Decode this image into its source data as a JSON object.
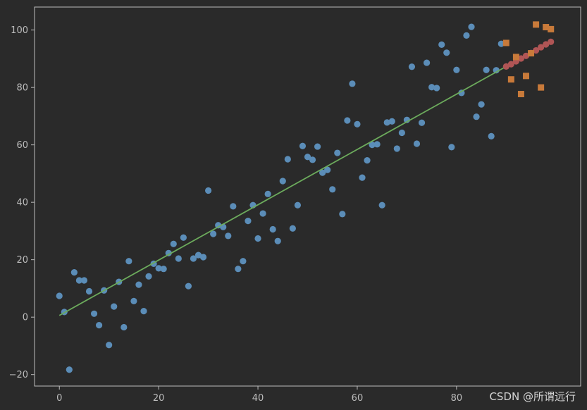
{
  "watermark": "CSDN @所谓远行",
  "chart_data": {
    "type": "scatter",
    "xlim": [
      -5,
      105
    ],
    "ylim": [
      -24,
      108
    ],
    "x_ticks": [
      0,
      20,
      40,
      60,
      80
    ],
    "y_ticks": [
      -20,
      0,
      20,
      40,
      60,
      80,
      100
    ],
    "grid": false,
    "legend": "none",
    "colors": {
      "background": "#2a2a2a",
      "axes": "#bcbcbc",
      "observed": "#5b8db8",
      "fit_line": "#6cab5c",
      "predicted": "#b05555",
      "test": "#c87a3a"
    },
    "series": [
      {
        "kind": "scatter",
        "marker": "circle",
        "color": "#5b8db8",
        "points": [
          [
            0,
            7.4
          ],
          [
            1,
            1.8
          ],
          [
            2,
            -18.3
          ],
          [
            3,
            15.6
          ],
          [
            4,
            12.8
          ],
          [
            5,
            12.8
          ],
          [
            6,
            9.0
          ],
          [
            7,
            1.2
          ],
          [
            8,
            -2.8
          ],
          [
            9,
            9.3
          ],
          [
            10,
            -9.7
          ],
          [
            11,
            3.7
          ],
          [
            12,
            12.3
          ],
          [
            13,
            -3.5
          ],
          [
            14,
            19.5
          ],
          [
            15,
            5.6
          ],
          [
            16,
            11.3
          ],
          [
            17,
            2.1
          ],
          [
            18,
            14.2
          ],
          [
            19,
            18.6
          ],
          [
            20,
            17.0
          ],
          [
            21,
            16.8
          ],
          [
            22,
            22.3
          ],
          [
            23,
            25.5
          ],
          [
            24,
            20.4
          ],
          [
            25,
            27.7
          ],
          [
            26,
            10.8
          ],
          [
            27,
            20.4
          ],
          [
            28,
            21.6
          ],
          [
            29,
            20.9
          ],
          [
            30,
            44.1
          ],
          [
            31,
            29.0
          ],
          [
            32,
            32.0
          ],
          [
            33,
            31.4
          ],
          [
            34,
            28.3
          ],
          [
            35,
            38.6
          ],
          [
            36,
            16.8
          ],
          [
            37,
            19.5
          ],
          [
            38,
            33.5
          ],
          [
            39,
            39.0
          ],
          [
            40,
            27.4
          ],
          [
            41,
            36.1
          ],
          [
            42,
            42.9
          ],
          [
            43,
            30.6
          ],
          [
            44,
            26.5
          ],
          [
            45,
            47.4
          ],
          [
            46,
            55.0
          ],
          [
            47,
            30.9
          ],
          [
            48,
            39.0
          ],
          [
            49,
            59.6
          ],
          [
            50,
            55.8
          ],
          [
            51,
            54.8
          ],
          [
            52,
            59.4
          ],
          [
            53,
            50.3
          ],
          [
            54,
            51.3
          ],
          [
            55,
            44.5
          ],
          [
            56,
            57.2
          ],
          [
            57,
            35.9
          ],
          [
            58,
            68.5
          ],
          [
            59,
            81.3
          ],
          [
            60,
            67.2
          ],
          [
            61,
            48.6
          ],
          [
            62,
            54.6
          ],
          [
            63,
            60.0
          ],
          [
            64,
            60.2
          ],
          [
            65,
            39.0
          ],
          [
            66,
            67.8
          ],
          [
            67,
            68.2
          ],
          [
            68,
            58.7
          ],
          [
            69,
            64.2
          ],
          [
            70,
            68.7
          ],
          [
            71,
            87.2
          ],
          [
            72,
            60.4
          ],
          [
            73,
            67.7
          ],
          [
            74,
            88.6
          ],
          [
            75,
            80.1
          ],
          [
            76,
            79.8
          ],
          [
            77,
            94.9
          ],
          [
            78,
            92.1
          ],
          [
            79,
            59.2
          ],
          [
            80,
            86.1
          ],
          [
            81,
            78.1
          ],
          [
            82,
            98.1
          ],
          [
            83,
            101.1
          ],
          [
            84,
            69.8
          ],
          [
            85,
            74.1
          ],
          [
            86,
            86.1
          ],
          [
            87,
            63.0
          ],
          [
            88,
            86.0
          ],
          [
            89,
            95.2
          ]
        ]
      },
      {
        "kind": "line",
        "color": "#6cab5c",
        "points": [
          [
            0,
            0.6
          ],
          [
            90,
            87.3
          ]
        ]
      },
      {
        "kind": "scatter",
        "marker": "circle",
        "color": "#b05555",
        "points": [
          [
            90,
            87.3
          ],
          [
            91,
            88.1
          ],
          [
            92,
            89.1
          ],
          [
            93,
            90.1
          ],
          [
            94,
            91.0
          ],
          [
            95,
            92.0
          ],
          [
            96,
            92.9
          ],
          [
            97,
            94.0
          ],
          [
            98,
            95.0
          ],
          [
            99,
            95.9
          ]
        ]
      },
      {
        "kind": "scatter",
        "marker": "square",
        "color": "#c87a3a",
        "points": [
          [
            90,
            95.5
          ],
          [
            91,
            82.8
          ],
          [
            92,
            90.6
          ],
          [
            93,
            77.7
          ],
          [
            94,
            84.0
          ],
          [
            95,
            91.9
          ],
          [
            96,
            101.9
          ],
          [
            97,
            80.0
          ],
          [
            98,
            101.0
          ],
          [
            99,
            100.3
          ]
        ]
      }
    ]
  }
}
